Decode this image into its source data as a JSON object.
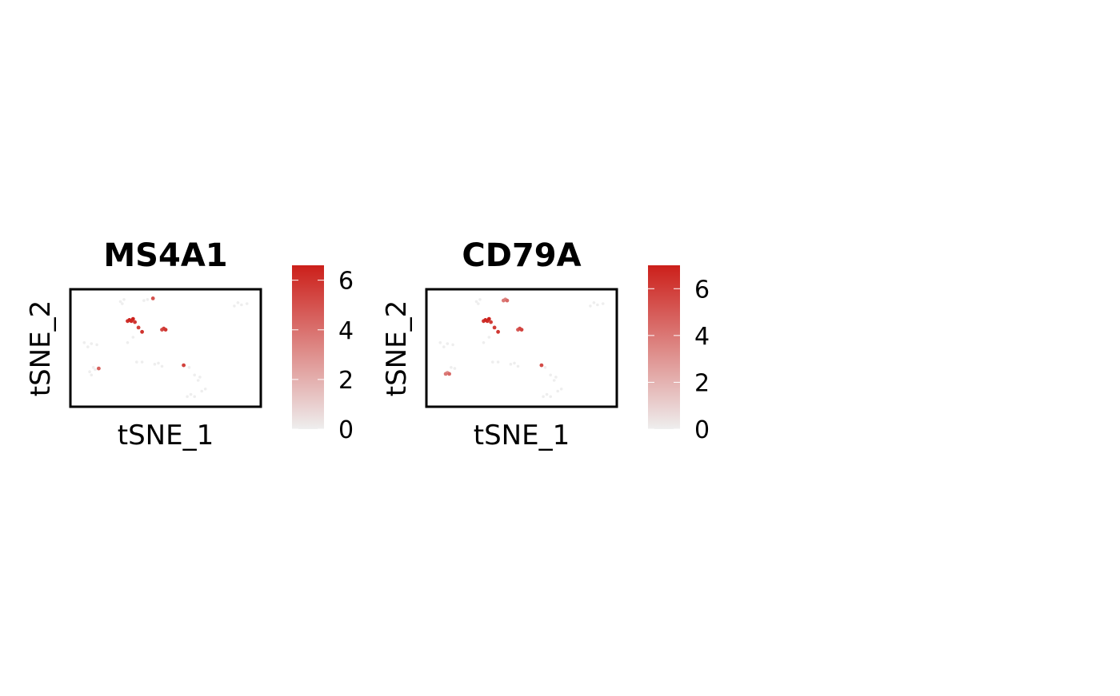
{
  "chart_data": [
    {
      "type": "scatter",
      "title": "MS4A1",
      "xlabel": "tSNE_1",
      "ylabel": "tSNE_2",
      "color_scale": {
        "low": "#eeeeee",
        "high": "#cc1f1a",
        "min": 0,
        "max": 6.6,
        "ticks": [
          "0",
          "2",
          "4",
          "6"
        ]
      },
      "points": [
        {
          "x": 0.25,
          "y": 0.93,
          "v": 0
        },
        {
          "x": 0.27,
          "y": 0.95,
          "v": 0
        },
        {
          "x": 0.26,
          "y": 0.91,
          "v": 0
        },
        {
          "x": 0.4,
          "y": 0.95,
          "v": 0
        },
        {
          "x": 0.38,
          "y": 0.94,
          "v": 0
        },
        {
          "x": 0.43,
          "y": 0.96,
          "v": 5.0
        },
        {
          "x": 0.9,
          "y": 0.92,
          "v": 0
        },
        {
          "x": 0.92,
          "y": 0.9,
          "v": 0
        },
        {
          "x": 0.95,
          "y": 0.91,
          "v": 0
        },
        {
          "x": 0.88,
          "y": 0.89,
          "v": 0
        },
        {
          "x": 0.3,
          "y": 0.76,
          "v": 6.4
        },
        {
          "x": 0.31,
          "y": 0.75,
          "v": 6.2
        },
        {
          "x": 0.29,
          "y": 0.75,
          "v": 6.0
        },
        {
          "x": 0.32,
          "y": 0.77,
          "v": 6.5
        },
        {
          "x": 0.33,
          "y": 0.74,
          "v": 5.8
        },
        {
          "x": 0.35,
          "y": 0.69,
          "v": 5.5
        },
        {
          "x": 0.37,
          "y": 0.65,
          "v": 6.0
        },
        {
          "x": 0.32,
          "y": 0.6,
          "v": 0
        },
        {
          "x": 0.29,
          "y": 0.55,
          "v": 0
        },
        {
          "x": 0.48,
          "y": 0.67,
          "v": 5.2
        },
        {
          "x": 0.49,
          "y": 0.68,
          "v": 5.6
        },
        {
          "x": 0.5,
          "y": 0.67,
          "v": 5.9
        },
        {
          "x": 0.05,
          "y": 0.55,
          "v": 0
        },
        {
          "x": 0.07,
          "y": 0.51,
          "v": 0
        },
        {
          "x": 0.09,
          "y": 0.54,
          "v": 0
        },
        {
          "x": 0.12,
          "y": 0.53,
          "v": 0
        },
        {
          "x": 0.08,
          "y": 0.28,
          "v": 0
        },
        {
          "x": 0.1,
          "y": 0.32,
          "v": 0
        },
        {
          "x": 0.09,
          "y": 0.25,
          "v": 0
        },
        {
          "x": 0.11,
          "y": 0.3,
          "v": 0
        },
        {
          "x": 0.13,
          "y": 0.31,
          "v": 4.5
        },
        {
          "x": 0.34,
          "y": 0.37,
          "v": 0
        },
        {
          "x": 0.37,
          "y": 0.37,
          "v": 0
        },
        {
          "x": 0.44,
          "y": 0.35,
          "v": 0
        },
        {
          "x": 0.46,
          "y": 0.36,
          "v": 0
        },
        {
          "x": 0.48,
          "y": 0.33,
          "v": 0
        },
        {
          "x": 0.6,
          "y": 0.34,
          "v": 5.5
        },
        {
          "x": 0.63,
          "y": 0.32,
          "v": 0
        },
        {
          "x": 0.66,
          "y": 0.25,
          "v": 0
        },
        {
          "x": 0.68,
          "y": 0.2,
          "v": 0
        },
        {
          "x": 0.69,
          "y": 0.23,
          "v": 0
        },
        {
          "x": 0.62,
          "y": 0.05,
          "v": 0
        },
        {
          "x": 0.64,
          "y": 0.07,
          "v": 0
        },
        {
          "x": 0.66,
          "y": 0.05,
          "v": 0
        },
        {
          "x": 0.7,
          "y": 0.1,
          "v": 0
        },
        {
          "x": 0.72,
          "y": 0.12,
          "v": 0
        }
      ]
    },
    {
      "type": "scatter",
      "title": "CD79A",
      "xlabel": "tSNE_1",
      "ylabel": "tSNE_2",
      "color_scale": {
        "low": "#eeeeee",
        "high": "#cc1f1a",
        "min": 0,
        "max": 7.0,
        "ticks": [
          "0",
          "2",
          "4",
          "6"
        ]
      },
      "points": [
        {
          "x": 0.25,
          "y": 0.93,
          "v": 0
        },
        {
          "x": 0.27,
          "y": 0.95,
          "v": 0
        },
        {
          "x": 0.26,
          "y": 0.91,
          "v": 0
        },
        {
          "x": 0.4,
          "y": 0.94,
          "v": 4.0
        },
        {
          "x": 0.41,
          "y": 0.95,
          "v": 3.5
        },
        {
          "x": 0.42,
          "y": 0.94,
          "v": 4.5
        },
        {
          "x": 0.9,
          "y": 0.92,
          "v": 0
        },
        {
          "x": 0.92,
          "y": 0.9,
          "v": 0
        },
        {
          "x": 0.95,
          "y": 0.91,
          "v": 0
        },
        {
          "x": 0.88,
          "y": 0.89,
          "v": 0
        },
        {
          "x": 0.3,
          "y": 0.76,
          "v": 6.8
        },
        {
          "x": 0.31,
          "y": 0.75,
          "v": 6.5
        },
        {
          "x": 0.29,
          "y": 0.75,
          "v": 6.3
        },
        {
          "x": 0.32,
          "y": 0.77,
          "v": 6.9
        },
        {
          "x": 0.33,
          "y": 0.74,
          "v": 6.0
        },
        {
          "x": 0.35,
          "y": 0.69,
          "v": 6.0
        },
        {
          "x": 0.37,
          "y": 0.65,
          "v": 6.2
        },
        {
          "x": 0.32,
          "y": 0.6,
          "v": 0
        },
        {
          "x": 0.29,
          "y": 0.55,
          "v": 0
        },
        {
          "x": 0.48,
          "y": 0.67,
          "v": 5.0
        },
        {
          "x": 0.49,
          "y": 0.68,
          "v": 5.5
        },
        {
          "x": 0.5,
          "y": 0.67,
          "v": 5.8
        },
        {
          "x": 0.05,
          "y": 0.55,
          "v": 0
        },
        {
          "x": 0.07,
          "y": 0.51,
          "v": 0
        },
        {
          "x": 0.09,
          "y": 0.54,
          "v": 0
        },
        {
          "x": 0.12,
          "y": 0.53,
          "v": 0
        },
        {
          "x": 0.08,
          "y": 0.26,
          "v": 4.0
        },
        {
          "x": 0.09,
          "y": 0.27,
          "v": 3.2
        },
        {
          "x": 0.1,
          "y": 0.26,
          "v": 4.5
        },
        {
          "x": 0.11,
          "y": 0.32,
          "v": 0
        },
        {
          "x": 0.13,
          "y": 0.31,
          "v": 0
        },
        {
          "x": 0.34,
          "y": 0.37,
          "v": 0
        },
        {
          "x": 0.37,
          "y": 0.37,
          "v": 0
        },
        {
          "x": 0.44,
          "y": 0.35,
          "v": 0
        },
        {
          "x": 0.46,
          "y": 0.36,
          "v": 0
        },
        {
          "x": 0.48,
          "y": 0.33,
          "v": 0
        },
        {
          "x": 0.61,
          "y": 0.34,
          "v": 5.5
        },
        {
          "x": 0.63,
          "y": 0.32,
          "v": 0
        },
        {
          "x": 0.66,
          "y": 0.25,
          "v": 0
        },
        {
          "x": 0.68,
          "y": 0.2,
          "v": 0
        },
        {
          "x": 0.69,
          "y": 0.23,
          "v": 0
        },
        {
          "x": 0.62,
          "y": 0.05,
          "v": 0
        },
        {
          "x": 0.64,
          "y": 0.07,
          "v": 0
        },
        {
          "x": 0.66,
          "y": 0.05,
          "v": 0
        },
        {
          "x": 0.7,
          "y": 0.1,
          "v": 0
        },
        {
          "x": 0.72,
          "y": 0.12,
          "v": 0
        }
      ]
    }
  ]
}
